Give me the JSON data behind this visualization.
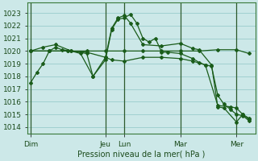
{
  "background_color": "#cce8e8",
  "grid_color": "#99cccc",
  "line_color": "#1a5c1a",
  "xlabel_text": "Pression niveau de la mer( hPa )",
  "ylim_min": 1013.5,
  "ylim_max": 1023.8,
  "yticks": [
    1014,
    1015,
    1016,
    1017,
    1018,
    1019,
    1020,
    1021,
    1022,
    1023
  ],
  "day_labels": [
    "Dim",
    "Jeu",
    "Lun",
    "Mar",
    "Mer"
  ],
  "day_x": [
    0,
    24,
    30,
    48,
    66
  ],
  "xlim_min": -1,
  "xlim_max": 72,
  "series": [
    {
      "x": [
        0,
        2,
        4,
        6,
        8,
        10,
        13,
        16,
        20,
        24,
        26,
        28,
        30,
        32,
        34,
        36,
        38,
        40,
        42,
        44,
        48,
        52,
        54,
        56,
        58,
        60,
        62,
        64,
        66,
        68,
        70
      ],
      "y": [
        1017.5,
        1018.3,
        1019.0,
        1020.0,
        1020.3,
        1020.1,
        1020.0,
        1019.8,
        1018.0,
        1019.3,
        1021.7,
        1022.5,
        1022.6,
        1022.9,
        1022.2,
        1021.0,
        1020.7,
        1021.0,
        1019.9,
        1019.9,
        1019.8,
        1019.4,
        1019.1,
        1018.9,
        1018.8,
        1016.5,
        1015.8,
        1015.4,
        1015.0,
        1014.9,
        1014.5
      ]
    },
    {
      "x": [
        0,
        6,
        12,
        18,
        24,
        30,
        36,
        42,
        48,
        54,
        60,
        66,
        70
      ],
      "y": [
        1020.0,
        1020.0,
        1020.0,
        1020.0,
        1020.0,
        1020.0,
        1020.0,
        1020.0,
        1020.0,
        1020.0,
        1020.1,
        1020.1,
        1019.8
      ]
    },
    {
      "x": [
        0,
        6,
        12,
        18,
        24,
        26,
        30,
        36,
        42,
        48,
        52,
        56,
        60,
        64,
        66,
        68,
        70
      ],
      "y": [
        1020.0,
        1020.0,
        1020.0,
        1019.9,
        1019.5,
        1019.3,
        1019.2,
        1019.5,
        1019.5,
        1019.4,
        1019.2,
        1018.9,
        1015.7,
        1015.6,
        1015.5,
        1015.0,
        1014.6
      ]
    },
    {
      "x": [
        0,
        4,
        8,
        13,
        18,
        20,
        24,
        26,
        28,
        30,
        32,
        36,
        42,
        48,
        52,
        54,
        58,
        60,
        62,
        66,
        68,
        70
      ],
      "y": [
        1020.0,
        1020.3,
        1020.5,
        1020.0,
        1019.8,
        1018.0,
        1019.5,
        1021.8,
        1022.6,
        1022.8,
        1022.2,
        1020.5,
        1020.4,
        1020.6,
        1020.2,
        1020.1,
        1018.9,
        1015.6,
        1015.5,
        1014.4,
        1015.0,
        1014.7
      ]
    }
  ]
}
